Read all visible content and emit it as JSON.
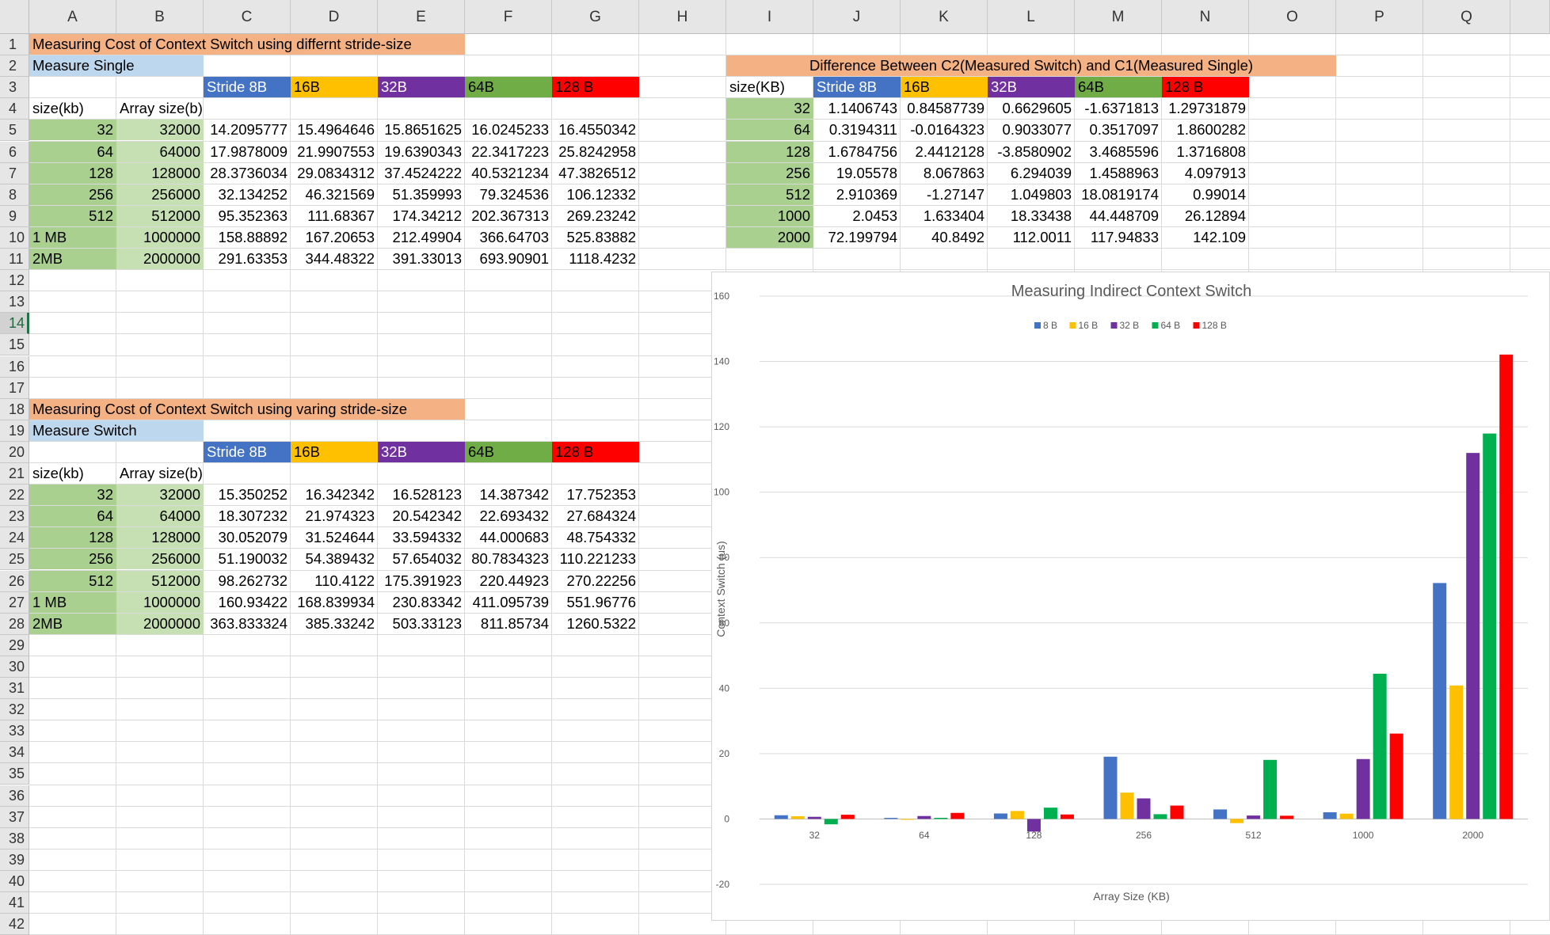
{
  "columns": [
    "A",
    "B",
    "C",
    "D",
    "E",
    "F",
    "G",
    "H",
    "I",
    "J",
    "K",
    "L",
    "M",
    "N",
    "O",
    "P",
    "Q"
  ],
  "rows": [
    "1",
    "2",
    "3",
    "4",
    "5",
    "6",
    "7",
    "8",
    "9",
    "10",
    "11",
    "12",
    "13",
    "14",
    "15",
    "16",
    "17",
    "18",
    "19",
    "20",
    "21",
    "22",
    "23",
    "24",
    "25",
    "26",
    "27",
    "28",
    "29",
    "30",
    "31",
    "32",
    "33",
    "34",
    "35",
    "36",
    "37",
    "38",
    "39",
    "40",
    "41",
    "42"
  ],
  "selected_row": "14",
  "colors": {
    "orange": "#f4b183",
    "light_blue": "#bdd7ee",
    "blue": "#4472c4",
    "gold": "#ffc000",
    "purple": "#7030a0",
    "green": "#70ad47",
    "red": "#ff0000",
    "green_dark": "#a9d08e",
    "green_light": "#c6e0b4",
    "chart_green": "#00b050"
  },
  "section1": {
    "title": "Measuring Cost of Context Switch using differnt stride-size",
    "subtitle": "Measure Single",
    "stride_headers": [
      "Stride 8B",
      "16B",
      "32B",
      "64B",
      "128 B"
    ],
    "size_header": "size(kb)",
    "array_header": "Array size(b)",
    "sizes": [
      "32",
      "64",
      "128",
      "256",
      "512",
      "1 MB",
      "2MB"
    ],
    "arrays": [
      "32000",
      "64000",
      "128000",
      "256000",
      "512000",
      "1000000",
      "2000000"
    ],
    "values": [
      [
        "14.2095777",
        "15.4964646",
        "15.8651625",
        "16.0245233",
        "16.4550342"
      ],
      [
        "17.9878009",
        "21.9907553",
        "19.6390343",
        "22.3417223",
        "25.8242958"
      ],
      [
        "28.3736034",
        "29.0834312",
        "37.4524222",
        "40.5321234",
        "47.3826512"
      ],
      [
        "32.134252",
        "46.321569",
        "51.359993",
        "79.324536",
        "106.12332"
      ],
      [
        "95.352363",
        "111.68367",
        "174.34212",
        "202.367313",
        "269.23242"
      ],
      [
        "158.88892",
        "167.20653",
        "212.49904",
        "366.64703",
        "525.83882"
      ],
      [
        "291.63353",
        "344.48322",
        "391.33013",
        "693.90901",
        "1118.4232"
      ]
    ]
  },
  "section2": {
    "title": "Measuring Cost of Context Switch using varing stride-size",
    "subtitle": "Measure Switch",
    "stride_headers": [
      "Stride 8B",
      "16B",
      "32B",
      "64B",
      "128 B"
    ],
    "size_header": "size(kb)",
    "array_header": "Array size(b)",
    "sizes": [
      "32",
      "64",
      "128",
      "256",
      "512",
      "1 MB",
      "2MB"
    ],
    "arrays": [
      "32000",
      "64000",
      "128000",
      "256000",
      "512000",
      "1000000",
      "2000000"
    ],
    "values": [
      [
        "15.350252",
        "16.342342",
        "16.528123",
        "14.387342",
        "17.752353"
      ],
      [
        "18.307232",
        "21.974323",
        "20.542342",
        "22.693432",
        "27.684324"
      ],
      [
        "30.052079",
        "31.524644",
        "33.594332",
        "44.000683",
        "48.754332"
      ],
      [
        "51.190032",
        "54.389432",
        "57.654032",
        "80.7834323",
        "110.221233"
      ],
      [
        "98.262732",
        "110.4122",
        "175.391923",
        "220.44923",
        "270.22256"
      ],
      [
        "160.93422",
        "168.839934",
        "230.83342",
        "411.095739",
        "551.96776"
      ],
      [
        "363.833324",
        "385.33242",
        "503.33123",
        "811.85734",
        "1260.5322"
      ]
    ]
  },
  "section3": {
    "title": "Difference Between C2(Measured Switch) and C1(Measured Single)",
    "size_header": "size(KB)",
    "stride_headers": [
      "Stride 8B",
      "16B",
      "32B",
      "64B",
      "128 B"
    ],
    "sizes": [
      "32",
      "64",
      "128",
      "256",
      "512",
      "1000",
      "2000"
    ],
    "values": [
      [
        "1.1406743",
        "0.84587739",
        "0.6629605",
        "-1.6371813",
        "1.29731879"
      ],
      [
        "0.3194311",
        "-0.0164323",
        "0.9033077",
        "0.3517097",
        "1.8600282"
      ],
      [
        "1.6784756",
        "2.4412128",
        "-3.8580902",
        "3.4685596",
        "1.3716808"
      ],
      [
        "19.05578",
        "8.067863",
        "6.294039",
        "1.4588963",
        "4.097913"
      ],
      [
        "2.910369",
        "-1.27147",
        "1.049803",
        "18.0819174",
        "0.99014"
      ],
      [
        "2.0453",
        "1.633404",
        "18.33438",
        "44.448709",
        "26.12894"
      ],
      [
        "72.199794",
        "40.8492",
        "112.0011",
        "117.94833",
        "142.109"
      ]
    ]
  },
  "chart_data": {
    "type": "bar",
    "title": "Measuring Indirect Context Switch",
    "xlabel": "Array Size (KB)",
    "ylabel": "Context Switch (us)",
    "categories": [
      "32",
      "64",
      "128",
      "256",
      "512",
      "1000",
      "2000"
    ],
    "ylim": [
      -20,
      160
    ],
    "yticks": [
      "-20",
      "0",
      "20",
      "40",
      "60",
      "80",
      "100",
      "120",
      "140",
      "160"
    ],
    "legend_position": "top",
    "grid": true,
    "series": [
      {
        "name": "8 B",
        "color": "#4472c4",
        "values": [
          1.1406743,
          0.3194311,
          1.6784756,
          19.05578,
          2.910369,
          2.0453,
          72.199794
        ]
      },
      {
        "name": "16 B",
        "color": "#ffc000",
        "values": [
          0.84587739,
          -0.0164323,
          2.4412128,
          8.067863,
          -1.27147,
          1.633404,
          40.8492
        ]
      },
      {
        "name": "32 B",
        "color": "#7030a0",
        "values": [
          0.6629605,
          0.9033077,
          -3.8580902,
          6.294039,
          1.049803,
          18.33438,
          112.0011
        ]
      },
      {
        "name": "64 B",
        "color": "#00b050",
        "values": [
          -1.6371813,
          0.3517097,
          3.4685596,
          1.4588963,
          18.0819174,
          44.448709,
          117.94833
        ]
      },
      {
        "name": "128 B",
        "color": "#ff0000",
        "values": [
          1.29731879,
          1.8600282,
          1.3716808,
          4.097913,
          0.99014,
          26.12894,
          142.109
        ]
      }
    ]
  }
}
